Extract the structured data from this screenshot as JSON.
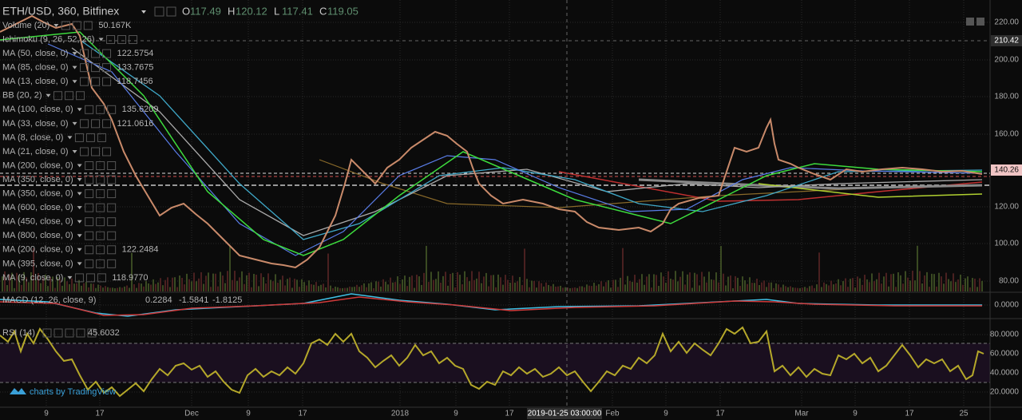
{
  "header": {
    "symbol": "ETH/USD, 360, Bitfinex",
    "ohlc": [
      {
        "label": "O",
        "value": "117.49"
      },
      {
        "label": "H",
        "value": "120.12"
      },
      {
        "label": "L",
        "value": "117.41"
      },
      {
        "label": "C",
        "value": "119.05"
      }
    ]
  },
  "indicators": [
    {
      "name": "Volume (20)",
      "value": "50.167K",
      "color": "#8fbf5a"
    },
    {
      "name": "Ichimoku (9, 26, 52, 26)"
    },
    {
      "name": "MA (50, close, 0)",
      "value": "122.5754",
      "color": "#3ddc3d"
    },
    {
      "name": "MA (85, close, 0)",
      "value": "133.7675",
      "color": "#e8e8e8"
    },
    {
      "name": "MA (13, close, 0)",
      "value": "118.7456",
      "color": "#c49a7e"
    },
    {
      "name": "BB (20, 2)"
    },
    {
      "name": "MA (100, close, 0)",
      "value": "135.6209",
      "color": "#3fc1e6"
    },
    {
      "name": "MA (33, close, 0)",
      "value": "121.0616",
      "color": "#5a7de8"
    },
    {
      "name": "MA (8, close, 0)"
    },
    {
      "name": "MA (21, close, 0)"
    },
    {
      "name": "MA (200, close, 0)"
    },
    {
      "name": "MA (350, close, 0)"
    },
    {
      "name": "MA (350, close, 0)"
    },
    {
      "name": "MA (600, close, 0)"
    },
    {
      "name": "MA (450, close, 0)"
    },
    {
      "name": "MA (800, close, 0)"
    },
    {
      "name": "MA (200, close, 0)",
      "value": "122.2484",
      "color": "#d9952b"
    },
    {
      "name": "MA (395, close, 0)"
    },
    {
      "name": "MA (9, close, 0)",
      "value": "118.9770",
      "color": "#f2e13a"
    }
  ],
  "price_axis": [
    "220.00",
    "210.42",
    "200.00",
    "180.00",
    "160.00",
    "140.26",
    "120.00",
    "100.00",
    "80.00"
  ],
  "macd": {
    "name": "MACD (12, 26, close, 9)",
    "values": [
      {
        "value": "0.2284",
        "color": "#e8e8e8"
      },
      {
        "value": "-1.5841",
        "color": "#3fc1e6"
      },
      {
        "value": "-1.8125",
        "color": "#e04040"
      }
    ],
    "axis": "0.0000"
  },
  "rsi": {
    "name": "RSI (14)",
    "value": "45.6032",
    "axis": [
      "80.0000",
      "60.0000",
      "40.0000",
      "20.0000"
    ]
  },
  "time_axis": [
    "9",
    "17",
    "Dec",
    "9",
    "17",
    "2018",
    "9",
    "17",
    "2019-01-25 03:00:00",
    "Feb",
    "9",
    "17",
    "Mar",
    "9",
    "17",
    "25"
  ],
  "watermark": "charts by TradingView"
}
